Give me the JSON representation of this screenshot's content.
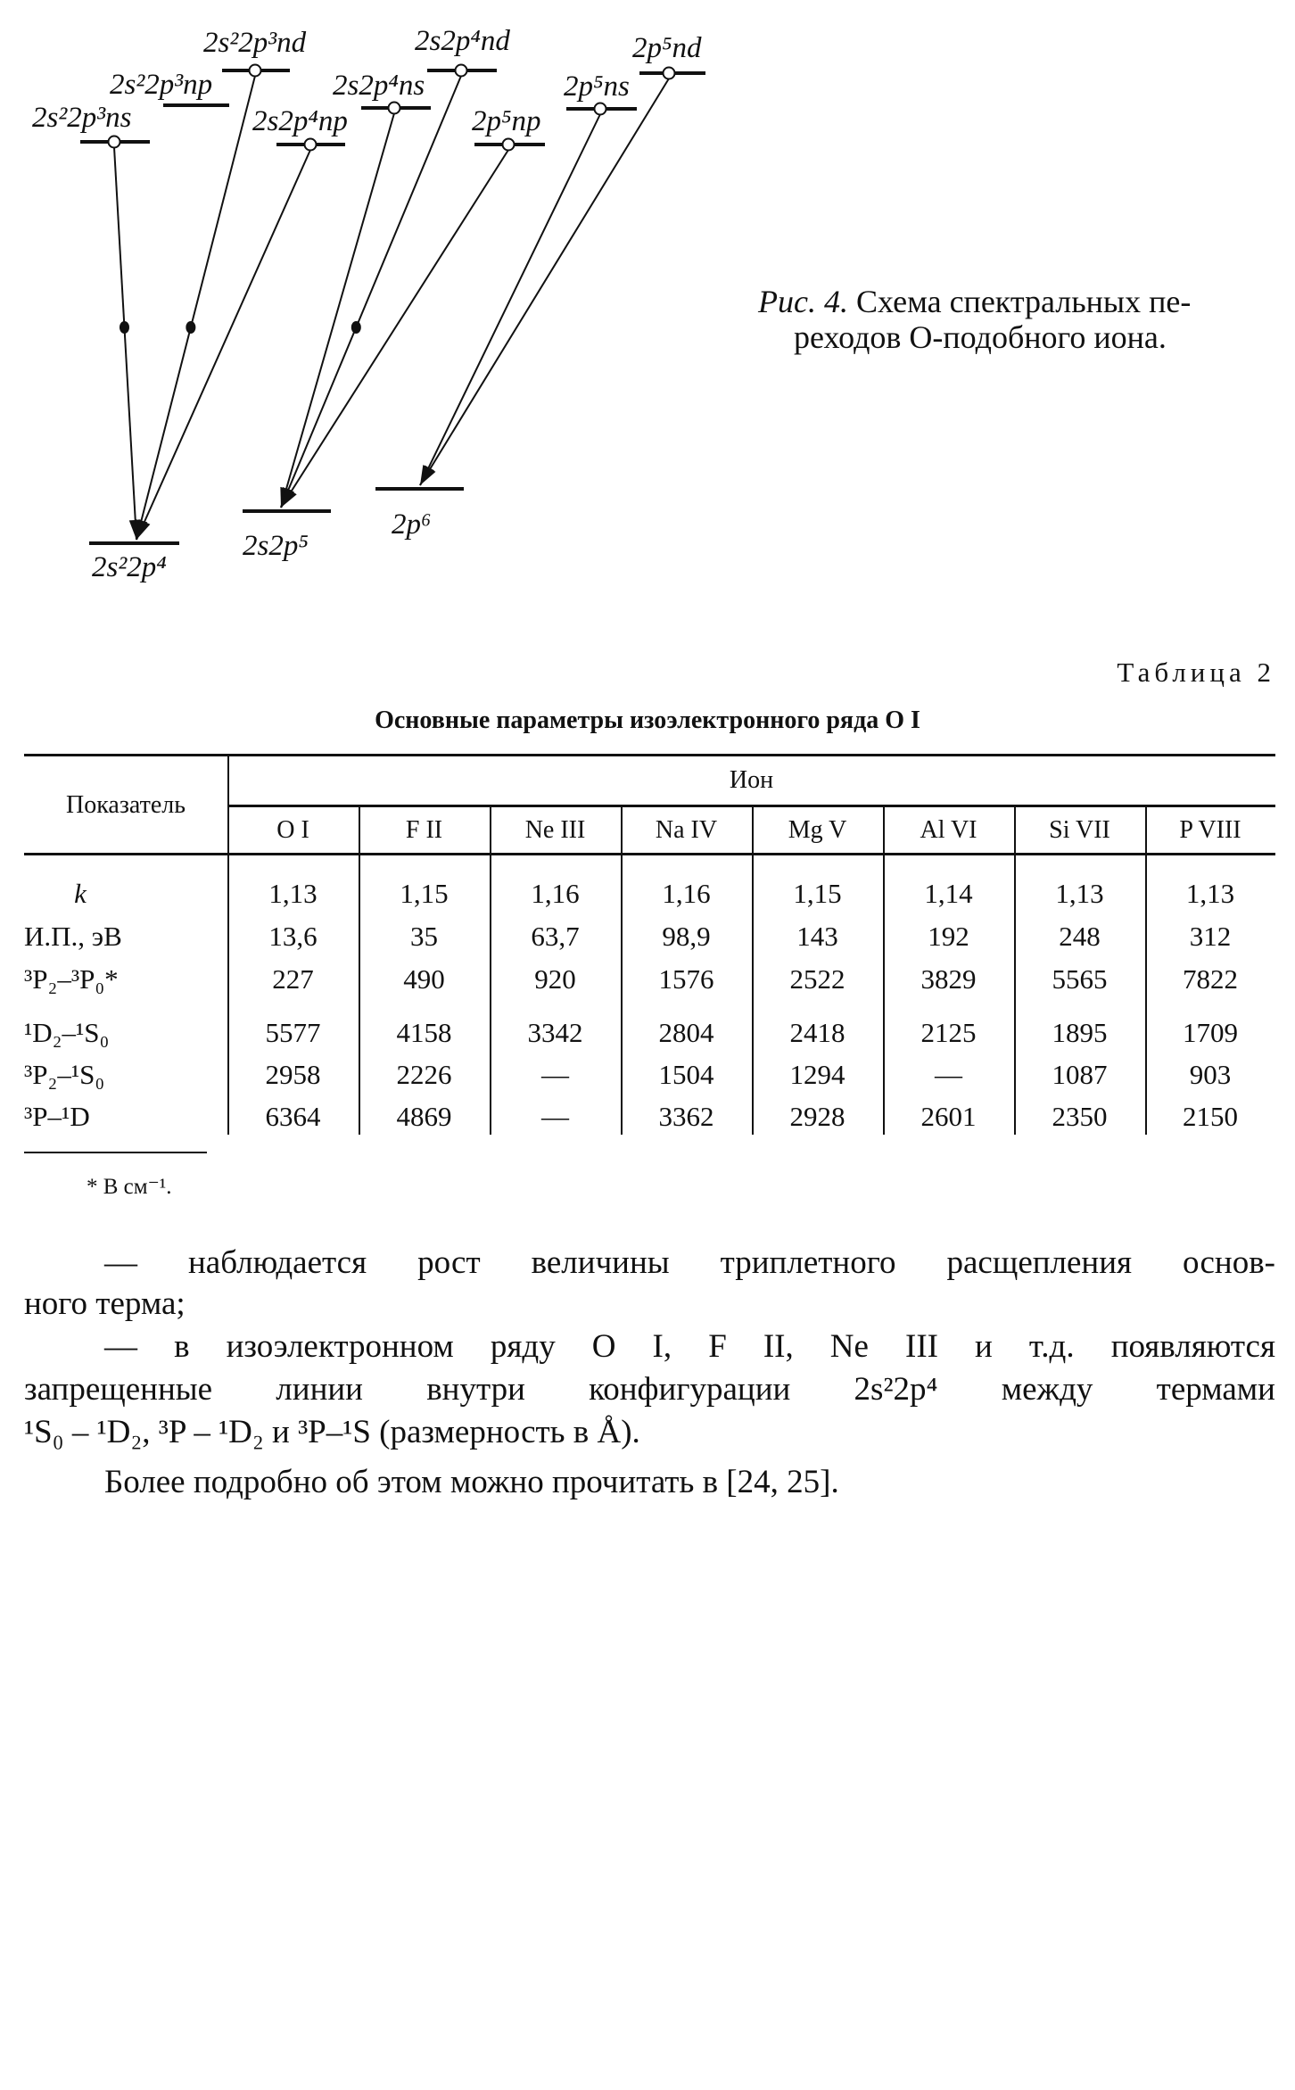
{
  "figure": {
    "levels": [
      {
        "id": "ns3",
        "label": "2s²2p³ns"
      },
      {
        "id": "np3",
        "label": "2s²2p³np"
      },
      {
        "id": "nd3",
        "label": "2s²2p³nd"
      },
      {
        "id": "np4",
        "label": "2s2p⁴np"
      },
      {
        "id": "ns4",
        "label": "2s2p⁴ns"
      },
      {
        "id": "nd4",
        "label": "2s2p⁴nd"
      },
      {
        "id": "np5",
        "label": "2p⁵np"
      },
      {
        "id": "ns5",
        "label": "2p⁵ns"
      },
      {
        "id": "nd5",
        "label": "2p⁵nd"
      },
      {
        "id": "g1",
        "label": "2s²2p⁴"
      },
      {
        "id": "g2",
        "label": "2s2p⁵"
      },
      {
        "id": "g3",
        "label": "2p⁶"
      }
    ],
    "transitions": [
      {
        "from": "ns3",
        "to": "g1",
        "forbidden_marker": true
      },
      {
        "from": "nd3",
        "to": "g1",
        "forbidden_marker": true
      },
      {
        "from": "np4",
        "to": "g1",
        "forbidden_marker": false
      },
      {
        "from": "ns4",
        "to": "g2",
        "forbidden_marker": false
      },
      {
        "from": "nd4",
        "to": "g2",
        "forbidden_marker": true
      },
      {
        "from": "np5",
        "to": "g2",
        "forbidden_marker": false
      },
      {
        "from": "ns5",
        "to": "g3",
        "forbidden_marker": false
      },
      {
        "from": "nd5",
        "to": "g3",
        "forbidden_marker": false
      }
    ],
    "caption_label": "Рис. 4.",
    "caption_line1": " Схема спектральных пе-",
    "caption_line2": "реходов О-подобного иона."
  },
  "table": {
    "number": "Таблица 2",
    "title": "Основные параметры изоэлектронного ряда O I",
    "row_header": "Показатель",
    "group_header": "Ион",
    "columns": [
      "O I",
      "F II",
      "Ne III",
      "Na IV",
      "Mg V",
      "Al VI",
      "Si VII",
      "P VIII"
    ],
    "rows": [
      {
        "label": "k",
        "values": [
          "1,13",
          "1,15",
          "1,16",
          "1,16",
          "1,15",
          "1,14",
          "1,13",
          "1,13"
        ]
      },
      {
        "label": "И.П., эВ",
        "values": [
          "13,6",
          "35",
          "63,7",
          "98,9",
          "143",
          "192",
          "248",
          "312"
        ]
      },
      {
        "label": "³P₂–³P₀*",
        "values": [
          "227",
          "490",
          "920",
          "1576",
          "2522",
          "3829",
          "5565",
          "7822"
        ]
      },
      {
        "label": "¹D₂–¹S₀",
        "values": [
          "5577",
          "4158",
          "3342",
          "2804",
          "2418",
          "2125",
          "1895",
          "1709"
        ]
      },
      {
        "label": "³P₂–¹S₀",
        "values": [
          "2958",
          "2226",
          "—",
          "1504",
          "1294",
          "—",
          "1087",
          "903"
        ]
      },
      {
        "label": "³P–¹D",
        "values": [
          "6364",
          "4869",
          "—",
          "3362",
          "2928",
          "2601",
          "2350",
          "2150"
        ]
      }
    ],
    "footnote": "* В см⁻¹."
  },
  "text": {
    "lines": [
      "— наблюдается рост величины триплетного расщепления основ-",
      "ного терма;",
      "— в изоэлектронном ряду O I, F II, Ne III и т.д. появляются",
      "запрещенные линии внутри конфигурации 2s²2p⁴ между термами",
      "¹S₀ – ¹D₂, ³P – ¹D₂ и ³P–¹S (размерность в Å).",
      "Более подробно об этом можно прочитать в [24, 25]."
    ]
  }
}
